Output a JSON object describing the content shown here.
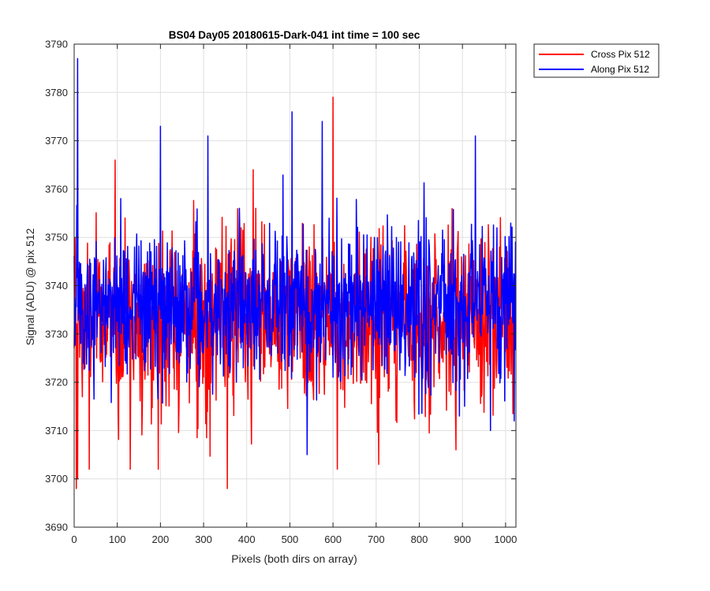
{
  "chart_data": {
    "type": "line",
    "title": "BS04 Day05 20180615-Dark-041 int time = 100 sec",
    "xlabel": "Pixels (both dirs on array)",
    "ylabel": "Signal (ADU) @ pix 512",
    "xlim": [
      0,
      1024
    ],
    "ylim": [
      3690,
      3790
    ],
    "xticks": [
      0,
      100,
      200,
      300,
      400,
      500,
      600,
      700,
      800,
      900,
      1000
    ],
    "yticks": [
      3690,
      3700,
      3710,
      3720,
      3730,
      3740,
      3750,
      3760,
      3770,
      3780,
      3790
    ],
    "grid": true,
    "legend_position": "outside-top-right",
    "series": [
      {
        "name": "Cross Pix 512",
        "color": "#ff0000",
        "mean": 3733,
        "noise_sd": 9,
        "n_points": 1024,
        "notable_points": [
          {
            "x": 5,
            "y": 3698
          },
          {
            "x": 8,
            "y": 3700
          },
          {
            "x": 35,
            "y": 3702
          },
          {
            "x": 95,
            "y": 3766
          },
          {
            "x": 130,
            "y": 3702
          },
          {
            "x": 195,
            "y": 3702
          },
          {
            "x": 355,
            "y": 3698
          },
          {
            "x": 415,
            "y": 3764
          },
          {
            "x": 600,
            "y": 3779
          },
          {
            "x": 610,
            "y": 3702
          },
          {
            "x": 706,
            "y": 3703
          },
          {
            "x": 885,
            "y": 3706
          }
        ]
      },
      {
        "name": "Along Pix 512",
        "color": "#0000ff",
        "mean": 3736,
        "noise_sd": 8,
        "n_points": 1024,
        "notable_points": [
          {
            "x": 8,
            "y": 3787
          },
          {
            "x": 200,
            "y": 3773
          },
          {
            "x": 310,
            "y": 3771
          },
          {
            "x": 505,
            "y": 3776
          },
          {
            "x": 540,
            "y": 3705
          },
          {
            "x": 575,
            "y": 3774
          },
          {
            "x": 930,
            "y": 3771
          },
          {
            "x": 965,
            "y": 3710
          },
          {
            "x": 1020,
            "y": 3712
          }
        ]
      }
    ]
  }
}
